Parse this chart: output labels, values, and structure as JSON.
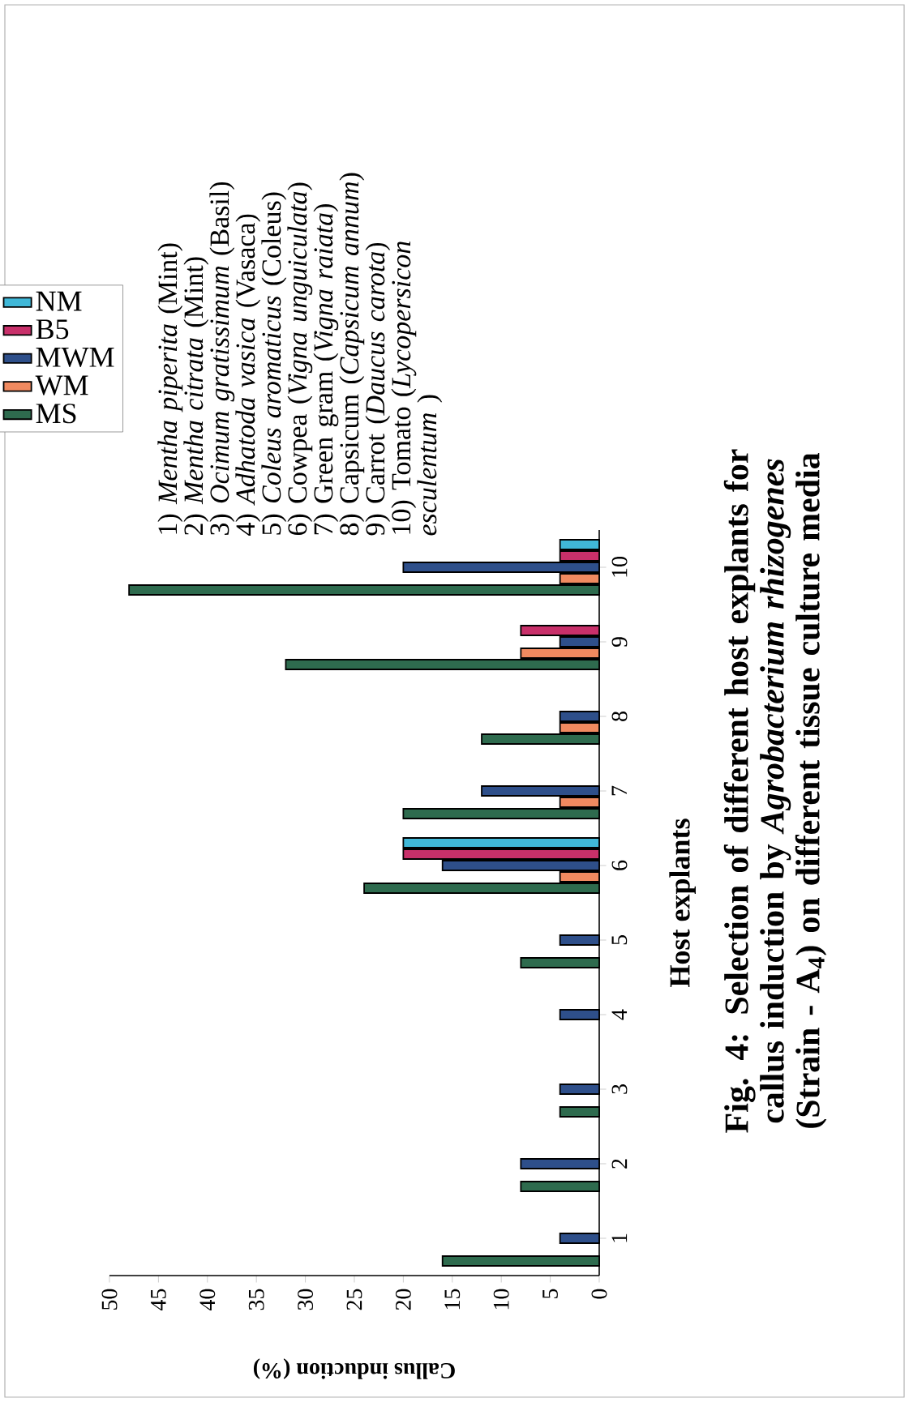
{
  "chart_data": {
    "type": "bar",
    "orientation": "horizontal",
    "title": "Fig. 4: Selection of different host explants for callus induction by *Agrobacterium rhizogenes* (Strain - A$_{4}$) on different tissue culture media",
    "xlabel": "Callus induction (%)",
    "ylabel": "Host explants",
    "categories": [
      "10",
      "9",
      "8",
      "7",
      "6",
      "5",
      "4",
      "3",
      "2",
      "1"
    ],
    "series": [
      {
        "name": "MS",
        "color": "#2e6b4e",
        "values": [
          48,
          32,
          12,
          20,
          24,
          8,
          0,
          4,
          8,
          16
        ]
      },
      {
        "name": "WM",
        "color": "#f08a60",
        "values": [
          4,
          8,
          4,
          4,
          4,
          0,
          0,
          0,
          0,
          0
        ]
      },
      {
        "name": "MWM",
        "color": "#2e4f8a",
        "values": [
          20,
          4,
          4,
          12,
          16,
          4,
          4,
          4,
          8,
          4
        ]
      },
      {
        "name": "B5",
        "color": "#c8306a",
        "values": [
          4,
          8,
          0,
          0,
          20,
          0,
          0,
          0,
          0,
          0
        ]
      },
      {
        "name": "NM",
        "color": "#40b8d8",
        "values": [
          4,
          0,
          0,
          0,
          20,
          0,
          0,
          0,
          0,
          0
        ]
      }
    ],
    "xlim": [
      50,
      0
    ],
    "xticks": [
      0,
      5,
      10,
      15,
      20,
      25,
      30,
      35,
      40,
      45,
      50
    ],
    "legend": "top left",
    "annotations": [
      "1) *Mentha piperita* (Mint)",
      "2) *Mentha citrata* (Mint)",
      "3) *Ocimum gratissimum* (Basil)",
      "4) *Adhatoda vasica* (Vasaca)",
      "5) *Coleus aromaticus* (Coleus)",
      "6) Cowpea (*Vigna unguiculata*)",
      "7) Green gram (*Vigna raiata*)",
      "8) Capsicum (*Capsicum annum*)",
      "9) Carrot (*Daucus carota*)",
      "10) Tomato (*Lycopersicon esculentum* )"
    ]
  }
}
